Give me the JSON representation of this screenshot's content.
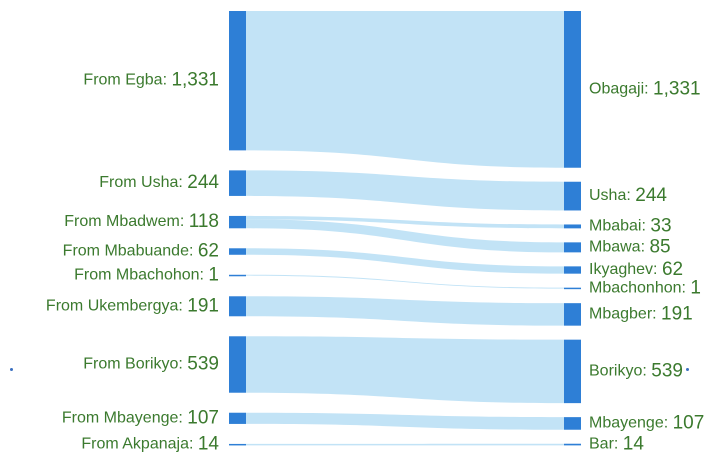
{
  "chart_data": {
    "type": "sankey",
    "title": "",
    "colors": {
      "node": "#2e7fd6",
      "link": "#bfe2f5",
      "label": "#3b7a2e"
    },
    "sources": [
      {
        "name": "From Egba:",
        "value": "1,331"
      },
      {
        "name": "From Usha:",
        "value": "244"
      },
      {
        "name": "From Mbadwem:",
        "value": "118"
      },
      {
        "name": "From Mbabuande:",
        "value": "62"
      },
      {
        "name": "From Mbachohon:",
        "value": "1"
      },
      {
        "name": "From Ukembergya:",
        "value": "191"
      },
      {
        "name": "From Borikyo:",
        "value": "539"
      },
      {
        "name": "From Mbayenge:",
        "value": "107"
      },
      {
        "name": "From Akpanaja:",
        "value": "14"
      }
    ],
    "targets": [
      {
        "name": "Obagaji:",
        "value": "1,331"
      },
      {
        "name": "Usha:",
        "value": "244"
      },
      {
        "name": "Mbabai:",
        "value": "33"
      },
      {
        "name": "Mbawa:",
        "value": "85"
      },
      {
        "name": "Ikyaghev:",
        "value": "62"
      },
      {
        "name": "Mbachonhon:",
        "value": "1"
      },
      {
        "name": "Mbagber:",
        "value": "191"
      },
      {
        "name": "Borikyo:",
        "value": "539"
      },
      {
        "name": "Mbayenge:",
        "value": "107"
      },
      {
        "name": "Bar:",
        "value": "14"
      }
    ],
    "links": [
      {
        "source": 0,
        "target": 0,
        "value": 1331
      },
      {
        "source": 1,
        "target": 1,
        "value": 244
      },
      {
        "source": 2,
        "target": 2,
        "value": 33
      },
      {
        "source": 2,
        "target": 3,
        "value": 85
      },
      {
        "source": 3,
        "target": 4,
        "value": 62
      },
      {
        "source": 4,
        "target": 5,
        "value": 1
      },
      {
        "source": 5,
        "target": 6,
        "value": 191
      },
      {
        "source": 6,
        "target": 7,
        "value": 539
      },
      {
        "source": 7,
        "target": 8,
        "value": 107
      },
      {
        "source": 8,
        "target": 9,
        "value": 14
      }
    ]
  }
}
